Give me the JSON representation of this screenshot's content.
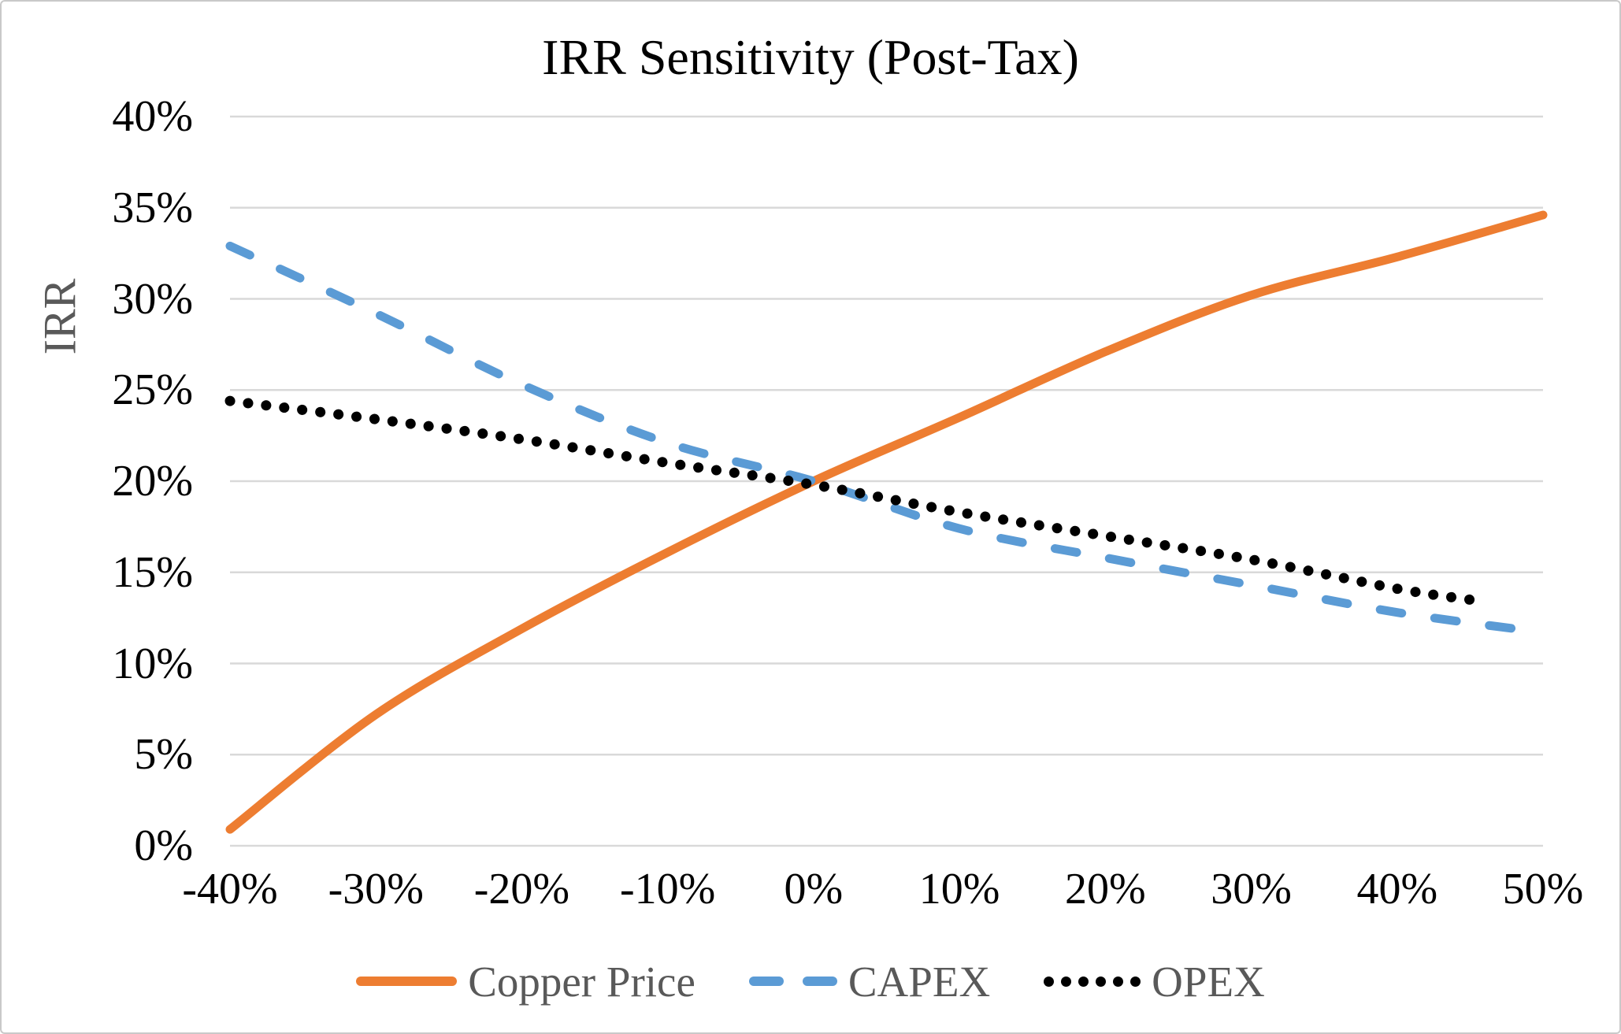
{
  "palette": {
    "background": "#FFFFFF",
    "border": "#C9C9C9",
    "gridline": "#D9D9D9",
    "title_text": "#000000",
    "tick_text": "#000000",
    "muted_text": "#595959"
  },
  "chart_data": {
    "type": "line",
    "title": "IRR Sensitivity (Post-Tax)",
    "ylabel": "IRR",
    "xlabel": "",
    "units": "percent IRR",
    "xlim": [
      -40,
      50
    ],
    "ylim": [
      0,
      40
    ],
    "grid": "horizontal-only",
    "legend_position": "bottom",
    "x_ticks": [
      {
        "v": -40,
        "label": "-40%"
      },
      {
        "v": -30,
        "label": "-30%"
      },
      {
        "v": -20,
        "label": "-20%"
      },
      {
        "v": -10,
        "label": "-10%"
      },
      {
        "v": 0,
        "label": "0%"
      },
      {
        "v": 10,
        "label": "10%"
      },
      {
        "v": 20,
        "label": "20%"
      },
      {
        "v": 30,
        "label": "30%"
      },
      {
        "v": 40,
        "label": "40%"
      },
      {
        "v": 50,
        "label": "50%"
      }
    ],
    "y_ticks": [
      {
        "v": 40,
        "label": "40%"
      },
      {
        "v": 35,
        "label": "35%"
      },
      {
        "v": 30,
        "label": "30%"
      },
      {
        "v": 25,
        "label": "25%"
      },
      {
        "v": 20,
        "label": "20%"
      },
      {
        "v": 15,
        "label": "15%"
      },
      {
        "v": 10,
        "label": "10%"
      },
      {
        "v": 5,
        "label": "5%"
      },
      {
        "v": 0,
        "label": "0%"
      }
    ],
    "series": [
      {
        "name": "Copper Price",
        "color": "#ED7D31",
        "line_style": "solid",
        "x": [
          -40,
          -30,
          -20,
          -10,
          0,
          10,
          20,
          30,
          40,
          50
        ],
        "values": [
          0.9,
          7.2,
          11.9,
          16.1,
          20.0,
          23.5,
          27.1,
          30.2,
          32.3,
          34.6
        ]
      },
      {
        "name": "CAPEX",
        "color": "#5B9BD5",
        "line_style": "dashed",
        "x": [
          -40,
          -30,
          -20,
          -10,
          0,
          10,
          20,
          30,
          40,
          50
        ],
        "values": [
          32.9,
          29.2,
          25.3,
          22.1,
          20.0,
          17.4,
          15.8,
          14.3,
          12.8,
          11.7
        ]
      },
      {
        "name": "OPEX",
        "color": "#000000",
        "line_style": "dotted",
        "x": [
          -40,
          -30,
          -20,
          -10,
          0,
          10,
          20,
          30,
          40,
          45
        ],
        "values": [
          24.4,
          23.4,
          22.3,
          21.0,
          19.8,
          18.3,
          17.0,
          15.7,
          14.1,
          13.5
        ]
      }
    ]
  }
}
